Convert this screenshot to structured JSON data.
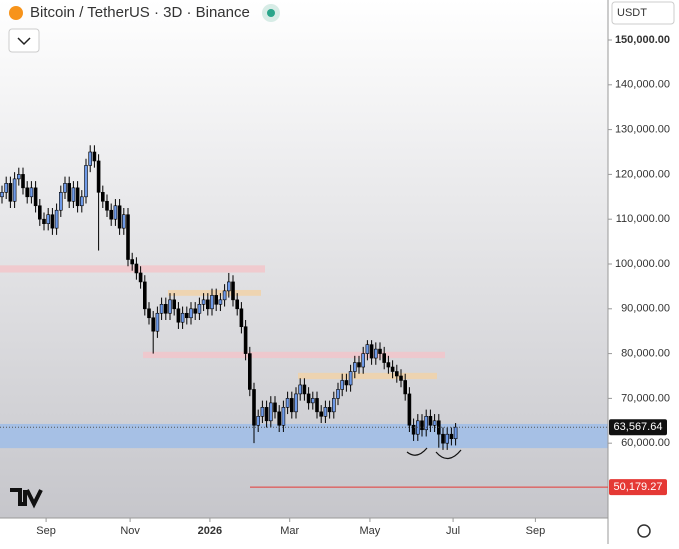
{
  "chart_data": {
    "type": "candlestick",
    "title": "Bitcoin / TetherUS · 3D · Binance",
    "currency": "USDT",
    "open": [
      115000,
      116000,
      118000,
      114000,
      119000,
      120000,
      117000,
      115000,
      117000,
      113000,
      110000,
      109000,
      111000,
      108000,
      112000,
      116000,
      118000,
      114000,
      117000,
      113000,
      115000,
      122000,
      125000,
      123000,
      116000,
      114000,
      112000,
      110000,
      113000,
      108000,
      111000,
      101000,
      100000,
      98000,
      96000,
      90000,
      88000,
      85000,
      89000,
      91000,
      89000,
      92000,
      90000,
      87000,
      89000,
      88000,
      90000,
      89000,
      91000,
      92000,
      90000,
      93000,
      91000,
      92000,
      94000,
      96000,
      92000,
      90000,
      86000,
      80000,
      72000,
      64000,
      66000,
      68000,
      65000,
      69000,
      67000,
      64000,
      68000,
      70000,
      67000,
      71000,
      73000,
      71000,
      69000,
      70000,
      67000,
      66000,
      68000,
      67000,
      70000,
      72000,
      74000,
      73000,
      76000,
      78000,
      77000,
      80000,
      82000,
      79000,
      81000,
      80000,
      78000,
      77000,
      76000,
      75000,
      74000,
      71000,
      64000,
      62000,
      65000,
      63000,
      66000,
      64000,
      65000,
      62000,
      60000,
      62000,
      61000
    ],
    "high": [
      117500,
      119500,
      119500,
      120500,
      121500,
      121500,
      118500,
      118500,
      118500,
      114500,
      111500,
      112500,
      112500,
      113500,
      117500,
      119500,
      119500,
      118500,
      118500,
      116500,
      123500,
      126500,
      126500,
      124500,
      117500,
      115500,
      113500,
      114500,
      114500,
      112500,
      112500,
      102500,
      101500,
      99500,
      97500,
      91500,
      89500,
      90500,
      92500,
      92500,
      93500,
      93500,
      91500,
      90500,
      90500,
      91500,
      91500,
      92500,
      93500,
      93500,
      94500,
      94500,
      93500,
      95500,
      98000,
      97500,
      93500,
      91500,
      87500,
      81500,
      73500,
      67500,
      69500,
      69500,
      70500,
      70500,
      68500,
      69500,
      71500,
      71500,
      72500,
      74500,
      74500,
      72500,
      71500,
      71500,
      68500,
      69500,
      69500,
      71500,
      73500,
      75500,
      75500,
      77500,
      79500,
      79500,
      81500,
      83000,
      83000,
      82500,
      82500,
      81500,
      79500,
      78500,
      77500,
      76500,
      75500,
      72500,
      65500,
      66500,
      66500,
      67500,
      67500,
      66500,
      66500,
      63500,
      63500,
      63500,
      64500
    ],
    "low": [
      113500,
      114500,
      112500,
      112500,
      117500,
      115500,
      113500,
      113500,
      111500,
      108500,
      107500,
      107500,
      106500,
      106500,
      110500,
      114500,
      112500,
      112500,
      111500,
      111500,
      113500,
      120500,
      121500,
      103000,
      112500,
      110500,
      108500,
      108500,
      106500,
      106500,
      99500,
      98500,
      96500,
      94500,
      88500,
      86500,
      80000,
      83500,
      87500,
      87500,
      87500,
      88500,
      85500,
      85500,
      86500,
      86500,
      87500,
      87500,
      89500,
      88500,
      88500,
      89500,
      89500,
      90500,
      92500,
      90500,
      88500,
      84500,
      78500,
      70500,
      60000,
      62500,
      64500,
      63500,
      63500,
      65500,
      62500,
      62500,
      66500,
      65500,
      65500,
      69500,
      69500,
      67500,
      67500,
      65500,
      64500,
      64500,
      65500,
      65500,
      68500,
      70500,
      71500,
      71500,
      74500,
      75500,
      75500,
      78500,
      77500,
      77500,
      78500,
      76500,
      75500,
      74500,
      73500,
      72500,
      69500,
      62500,
      60500,
      60500,
      61500,
      61500,
      62500,
      62500,
      59000,
      58500,
      58500,
      59500,
      59500
    ],
    "close": [
      116000,
      118000,
      114000,
      119000,
      120000,
      117000,
      115000,
      117000,
      113000,
      110000,
      109000,
      111000,
      108000,
      112000,
      116000,
      118000,
      114000,
      117000,
      113000,
      115000,
      122000,
      125000,
      123000,
      116000,
      114000,
      112000,
      110000,
      113000,
      108000,
      111000,
      101000,
      100000,
      98000,
      96000,
      90000,
      88000,
      85000,
      89000,
      91000,
      89000,
      92000,
      90000,
      87000,
      89000,
      88000,
      90000,
      89000,
      91000,
      92000,
      90000,
      93000,
      91000,
      92000,
      94000,
      96000,
      92000,
      90000,
      86000,
      80000,
      72000,
      64000,
      66000,
      68000,
      65000,
      69000,
      67000,
      64000,
      68000,
      70000,
      67000,
      71000,
      73000,
      71000,
      69000,
      70000,
      67000,
      66000,
      68000,
      67000,
      70000,
      72000,
      74000,
      73000,
      76000,
      78000,
      77000,
      80000,
      82000,
      79000,
      81000,
      80000,
      78000,
      77000,
      76000,
      75000,
      74000,
      71000,
      64000,
      62000,
      65000,
      63000,
      66000,
      64000,
      65000,
      62000,
      60000,
      62000,
      61000,
      63567.64
    ],
    "up_color": "#6f9ae8",
    "down_color": "#000000",
    "ylim": [
      43300,
      158930
    ],
    "yticks": [
      {
        "value": 60000,
        "label": "60,000.00"
      },
      {
        "value": 70000,
        "label": "70,000.00"
      },
      {
        "value": 80000,
        "label": "80,000.00"
      },
      {
        "value": 90000,
        "label": "90,000.00"
      },
      {
        "value": 100000,
        "label": "100,000.00"
      },
      {
        "value": 110000,
        "label": "110,000.00"
      },
      {
        "value": 120000,
        "label": "120,000.00"
      },
      {
        "value": 130000,
        "label": "130,000.00"
      },
      {
        "value": 140000,
        "label": "140,000.00"
      },
      {
        "value": 150000,
        "label": "150,000.00"
      }
    ],
    "xticks": [
      {
        "value": 10.5,
        "label": "Sep"
      },
      {
        "value": 30.5,
        "label": "Nov"
      },
      {
        "value": 49.5,
        "label": "2026"
      },
      {
        "value": 68.5,
        "label": "Mar"
      },
      {
        "value": 87.6,
        "label": "May"
      },
      {
        "value": 107.4,
        "label": "Jul"
      },
      {
        "value": 127,
        "label": "Sep"
      }
    ],
    "zones": [
      {
        "low": 98100,
        "high": 99700,
        "color": "#f2c6ca"
      },
      {
        "low": 92900,
        "high": 94200,
        "color": "#f1d2a8"
      },
      {
        "low": 79000,
        "high": 80400,
        "color": "#f2c6ca"
      },
      {
        "low": 74300,
        "high": 75700,
        "color": "#f1d2a8"
      },
      {
        "low": 58900,
        "high": 64300,
        "color": "#9fbde8"
      }
    ],
    "last_price": {
      "value": 63567.64,
      "label": "63,567.64"
    },
    "support_line": {
      "value": 50179.27,
      "label": "50,179.27",
      "color": "#e53935"
    }
  }
}
